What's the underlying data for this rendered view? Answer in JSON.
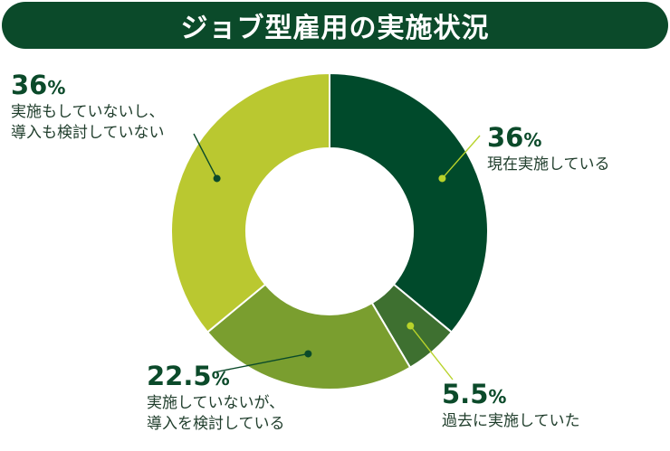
{
  "title": "ジョブ型雇用の実施状況",
  "chart_data": {
    "type": "pie",
    "donut": true,
    "unit": "%",
    "slices": [
      {
        "value": 36,
        "value_label": "36",
        "lines": [
          "現在実施している"
        ],
        "color": "#004a2b"
      },
      {
        "value": 5.5,
        "value_label": "5.5",
        "lines": [
          "過去に実施していた"
        ],
        "color": "#3e7030"
      },
      {
        "value": 22.5,
        "value_label": "22.5",
        "lines": [
          "実施していないが、",
          "導入を検討している"
        ],
        "color": "#7a9e2f"
      },
      {
        "value": 36,
        "value_label": "36",
        "lines": [
          "実施もしていないし、",
          "導入も検討していない"
        ],
        "color": "#bac830"
      }
    ]
  }
}
